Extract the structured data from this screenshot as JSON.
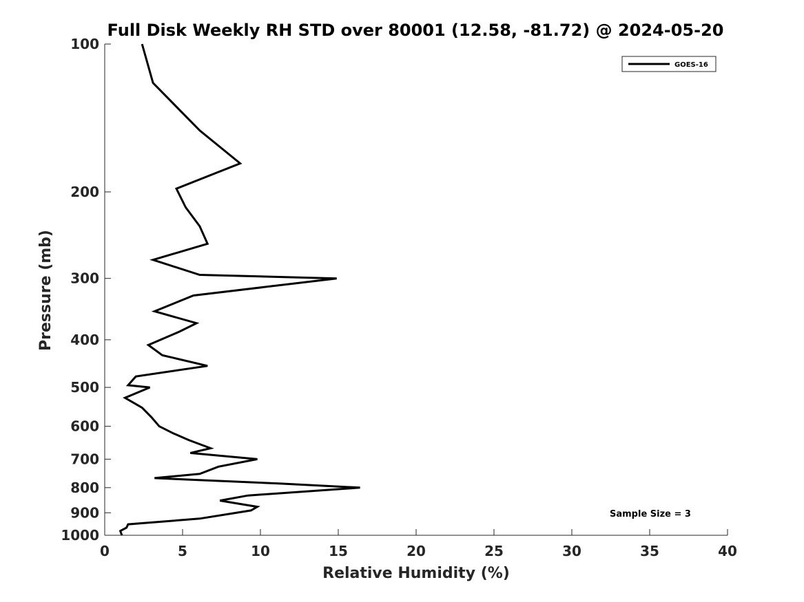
{
  "chart_data": {
    "type": "line",
    "title": "Full Disk Weekly RH STD over 80001 (12.58, -81.72) @ 2024-05-20",
    "xlabel": "Relative Humidity (%)",
    "ylabel": "Pressure (mb)",
    "xlim": [
      0,
      40
    ],
    "ylim": [
      100,
      1000
    ],
    "y_scale": "log",
    "y_reversed": true,
    "xticks": [
      0,
      5,
      10,
      15,
      20,
      25,
      30,
      35,
      40
    ],
    "xtick_labels": [
      "0",
      "5",
      "10",
      "15",
      "20",
      "25",
      "30",
      "35",
      "40"
    ],
    "yticks": [
      100,
      200,
      300,
      400,
      500,
      600,
      700,
      800,
      900,
      1000
    ],
    "ytick_labels": [
      "100",
      "200",
      "300",
      "400",
      "500",
      "600",
      "700",
      "800",
      "900",
      "1000"
    ],
    "grid": false,
    "legend_position": "top-right",
    "annotation": "Sample Size = 3",
    "series": [
      {
        "name": "GOES-16",
        "color": "#000000",
        "points": [
          [
            2.4,
            100
          ],
          [
            3.1,
            120
          ],
          [
            6.1,
            150
          ],
          [
            8.7,
            175
          ],
          [
            4.6,
            197
          ],
          [
            5.2,
            215
          ],
          [
            6.1,
            235
          ],
          [
            6.6,
            255
          ],
          [
            3.1,
            275
          ],
          [
            6.1,
            295
          ],
          [
            14.9,
            300
          ],
          [
            5.7,
            325
          ],
          [
            3.2,
            350
          ],
          [
            5.9,
            370
          ],
          [
            4.8,
            385
          ],
          [
            2.8,
            410
          ],
          [
            3.7,
            430
          ],
          [
            6.6,
            452
          ],
          [
            2.0,
            475
          ],
          [
            1.5,
            495
          ],
          [
            2.9,
            500
          ],
          [
            1.3,
            525
          ],
          [
            2.4,
            550
          ],
          [
            3.0,
            575
          ],
          [
            3.5,
            600
          ],
          [
            4.4,
            620
          ],
          [
            5.4,
            640
          ],
          [
            6.8,
            665
          ],
          [
            5.5,
            680
          ],
          [
            9.8,
            700
          ],
          [
            7.3,
            725
          ],
          [
            6.1,
            750
          ],
          [
            3.2,
            765
          ],
          [
            11.3,
            785
          ],
          [
            16.4,
            800
          ],
          [
            9.2,
            830
          ],
          [
            7.4,
            850
          ],
          [
            9.8,
            875
          ],
          [
            9.4,
            890
          ],
          [
            6.1,
            925
          ],
          [
            1.5,
            950
          ],
          [
            1.4,
            965
          ],
          [
            1.0,
            980
          ],
          [
            1.1,
            1000
          ]
        ]
      }
    ]
  }
}
